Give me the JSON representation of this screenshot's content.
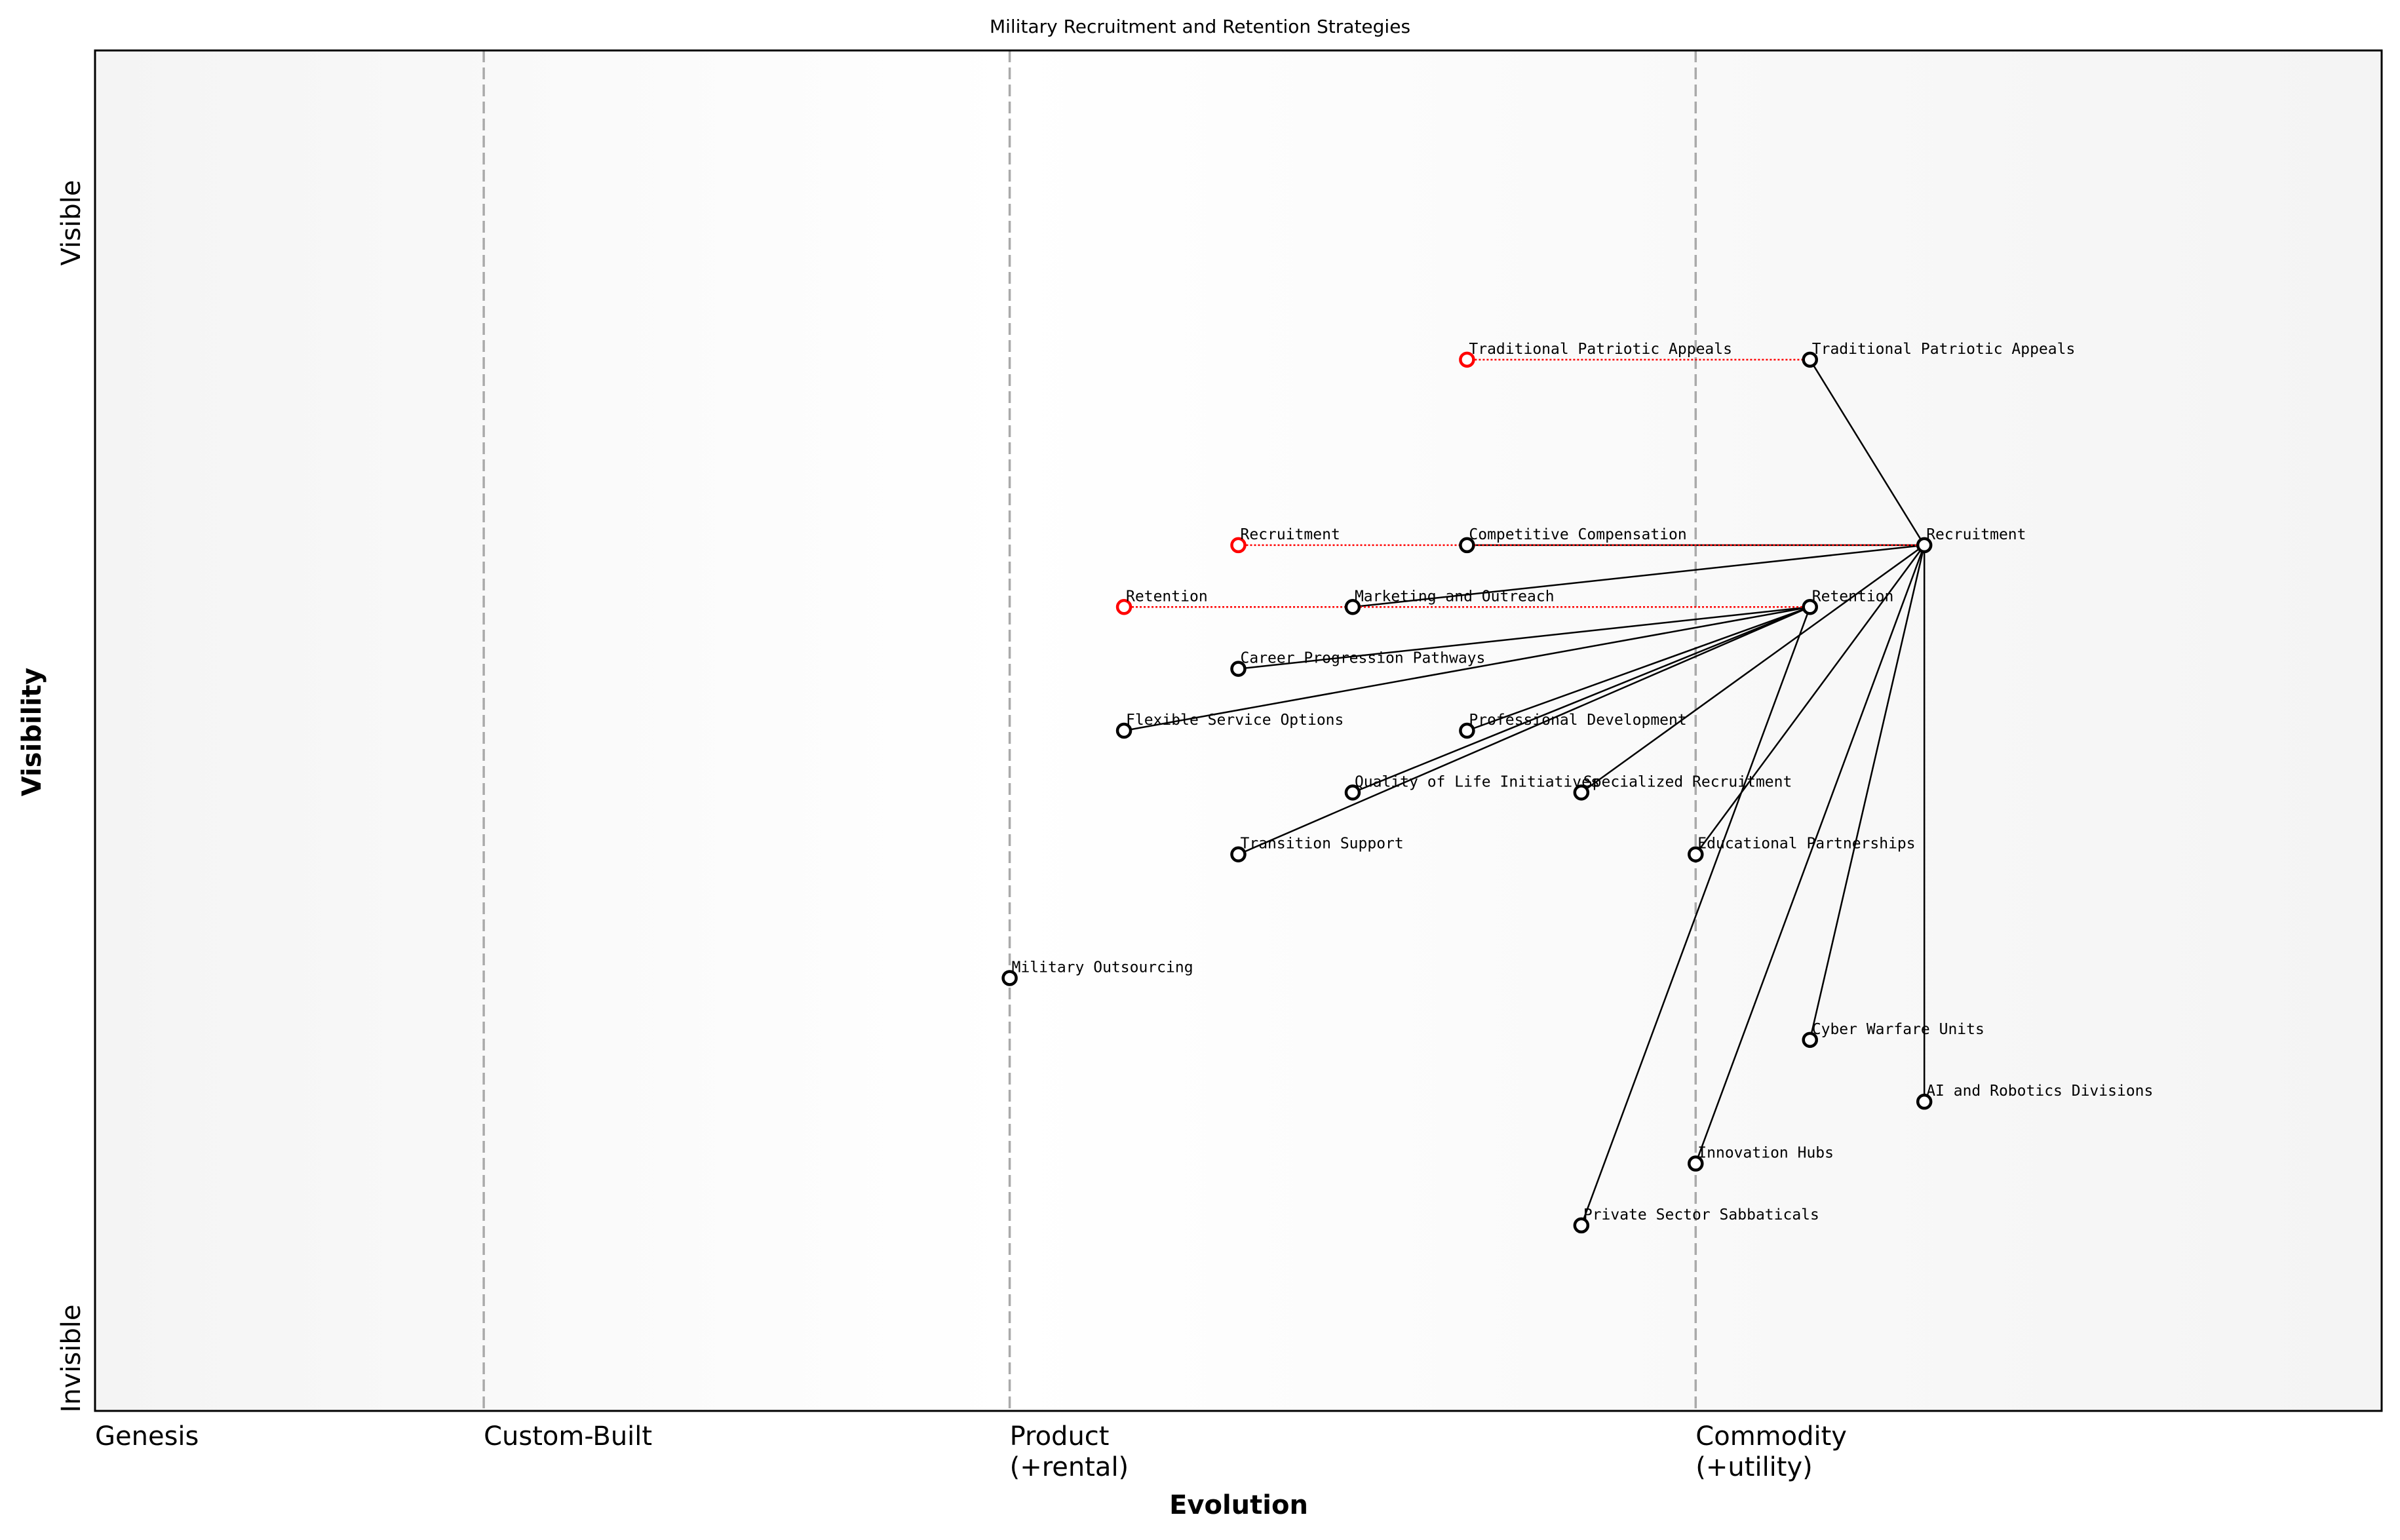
{
  "chart_data": {
    "type": "wardley-map",
    "title": "Military Recruitment and Retention Strategies",
    "xlabel": "Evolution",
    "ylabel": "Visibility",
    "y_top_label": "Visible",
    "y_bottom_label": "Invisible",
    "xlim": [
      0,
      1
    ],
    "ylim": [
      -0.05,
      1.05
    ],
    "stages": [
      {
        "label": "Genesis",
        "x": 0.0,
        "divider": false
      },
      {
        "label": "Custom-Built",
        "x": 0.17,
        "divider": true
      },
      {
        "label": "Product\n(+rental)",
        "x": 0.4,
        "divider": true
      },
      {
        "label": "Commodity\n(+utility)",
        "x": 0.7,
        "divider": true
      }
    ],
    "components": [
      {
        "name": "Traditional Patriotic Appeals",
        "x": 0.75,
        "y": 0.8
      },
      {
        "name": "Recruitment",
        "x": 0.8,
        "y": 0.65
      },
      {
        "name": "Retention",
        "x": 0.75,
        "y": 0.6
      },
      {
        "name": "Competitive Compensation",
        "x": 0.6,
        "y": 0.65
      },
      {
        "name": "Marketing and Outreach",
        "x": 0.55,
        "y": 0.6
      },
      {
        "name": "Career Progression Pathways",
        "x": 0.5,
        "y": 0.55
      },
      {
        "name": "Flexible Service Options",
        "x": 0.45,
        "y": 0.5
      },
      {
        "name": "Professional Development",
        "x": 0.6,
        "y": 0.5
      },
      {
        "name": "Quality of Life Initiatives",
        "x": 0.55,
        "y": 0.45
      },
      {
        "name": "Specialized Recruitment",
        "x": 0.65,
        "y": 0.45
      },
      {
        "name": "Transition Support",
        "x": 0.5,
        "y": 0.4
      },
      {
        "name": "Educational Partnerships",
        "x": 0.7,
        "y": 0.4
      },
      {
        "name": "Military Outsourcing",
        "x": 0.4,
        "y": 0.3
      },
      {
        "name": "Cyber Warfare Units",
        "x": 0.75,
        "y": 0.25
      },
      {
        "name": "AI and Robotics Divisions",
        "x": 0.8,
        "y": 0.2
      },
      {
        "name": "Innovation Hubs",
        "x": 0.7,
        "y": 0.15
      },
      {
        "name": "Private Sector Sabbaticals",
        "x": 0.65,
        "y": 0.1
      }
    ],
    "links": [
      [
        "Recruitment",
        "Traditional Patriotic Appeals"
      ],
      [
        "Recruitment",
        "Competitive Compensation"
      ],
      [
        "Recruitment",
        "Marketing and Outreach"
      ],
      [
        "Recruitment",
        "Specialized Recruitment"
      ],
      [
        "Recruitment",
        "Educational Partnerships"
      ],
      [
        "Recruitment",
        "Cyber Warfare Units"
      ],
      [
        "Recruitment",
        "AI and Robotics Divisions"
      ],
      [
        "Recruitment",
        "Innovation Hubs"
      ],
      [
        "Retention",
        "Career Progression Pathways"
      ],
      [
        "Retention",
        "Flexible Service Options"
      ],
      [
        "Retention",
        "Professional Development"
      ],
      [
        "Retention",
        "Quality of Life Initiatives"
      ],
      [
        "Retention",
        "Transition Support"
      ],
      [
        "Retention",
        "Private Sector Sabbaticals"
      ]
    ],
    "evolutions": [
      {
        "name": "Traditional Patriotic Appeals",
        "x": 0.6
      },
      {
        "name": "Recruitment",
        "x": 0.5
      },
      {
        "name": "Retention",
        "x": 0.45
      }
    ],
    "colors": {
      "component": "#000000",
      "evolution": "#ff0000",
      "divider": "#aaaaaa",
      "background_edge": "#f5f5f5",
      "background_mid": "#ffffff"
    }
  }
}
